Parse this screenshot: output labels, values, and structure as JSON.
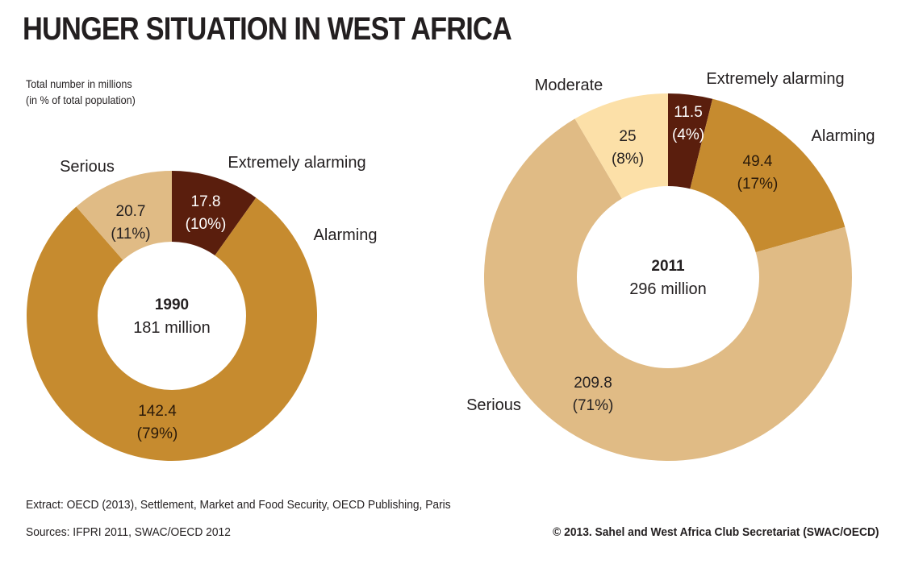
{
  "title": "HUNGER SITUATION IN WEST AFRICA",
  "subtitle_line1": "Total number in millions",
  "subtitle_line2": "(in % of total population)",
  "chart_data": [
    {
      "type": "pie",
      "variant": "donut",
      "year": "1990",
      "total": "181 million",
      "slices": [
        {
          "name": "Extremely alarming",
          "value": 17.8,
          "value_label": "17.8",
          "pct_label": "(10%)",
          "color": "#5a1e0d"
        },
        {
          "name": "Alarming",
          "value": 142.4,
          "value_label": "142.4",
          "pct_label": "(79%)",
          "color": "#c68b2f"
        },
        {
          "name": "Serious",
          "value": 20.7,
          "value_label": "20.7",
          "pct_label": "(11%)",
          "color": "#e0bb85"
        }
      ]
    },
    {
      "type": "pie",
      "variant": "donut",
      "year": "2011",
      "total": "296 million",
      "slices": [
        {
          "name": "Extremely alarming",
          "value": 11.5,
          "value_label": "11.5",
          "pct_label": "(4%)",
          "color": "#5a1e0d"
        },
        {
          "name": "Alarming",
          "value": 49.4,
          "value_label": "49.4",
          "pct_label": "(17%)",
          "color": "#c68b2f"
        },
        {
          "name": "Serious",
          "value": 209.8,
          "value_label": "209.8",
          "pct_label": "(71%)",
          "color": "#e0bb85"
        },
        {
          "name": "Moderate",
          "value": 25,
          "value_label": "25",
          "pct_label": "(8%)",
          "color": "#fce0a8"
        }
      ]
    }
  ],
  "footer": {
    "extract": "Extract: OECD (2013), Settlement, Market and Food Security, OECD Publishing, Paris",
    "sources": "Sources: IFPRI 2011, SWAC/OECD 2012",
    "copyright": "© 2013. Sahel and West Africa Club Secretariat (SWAC/OECD)"
  }
}
